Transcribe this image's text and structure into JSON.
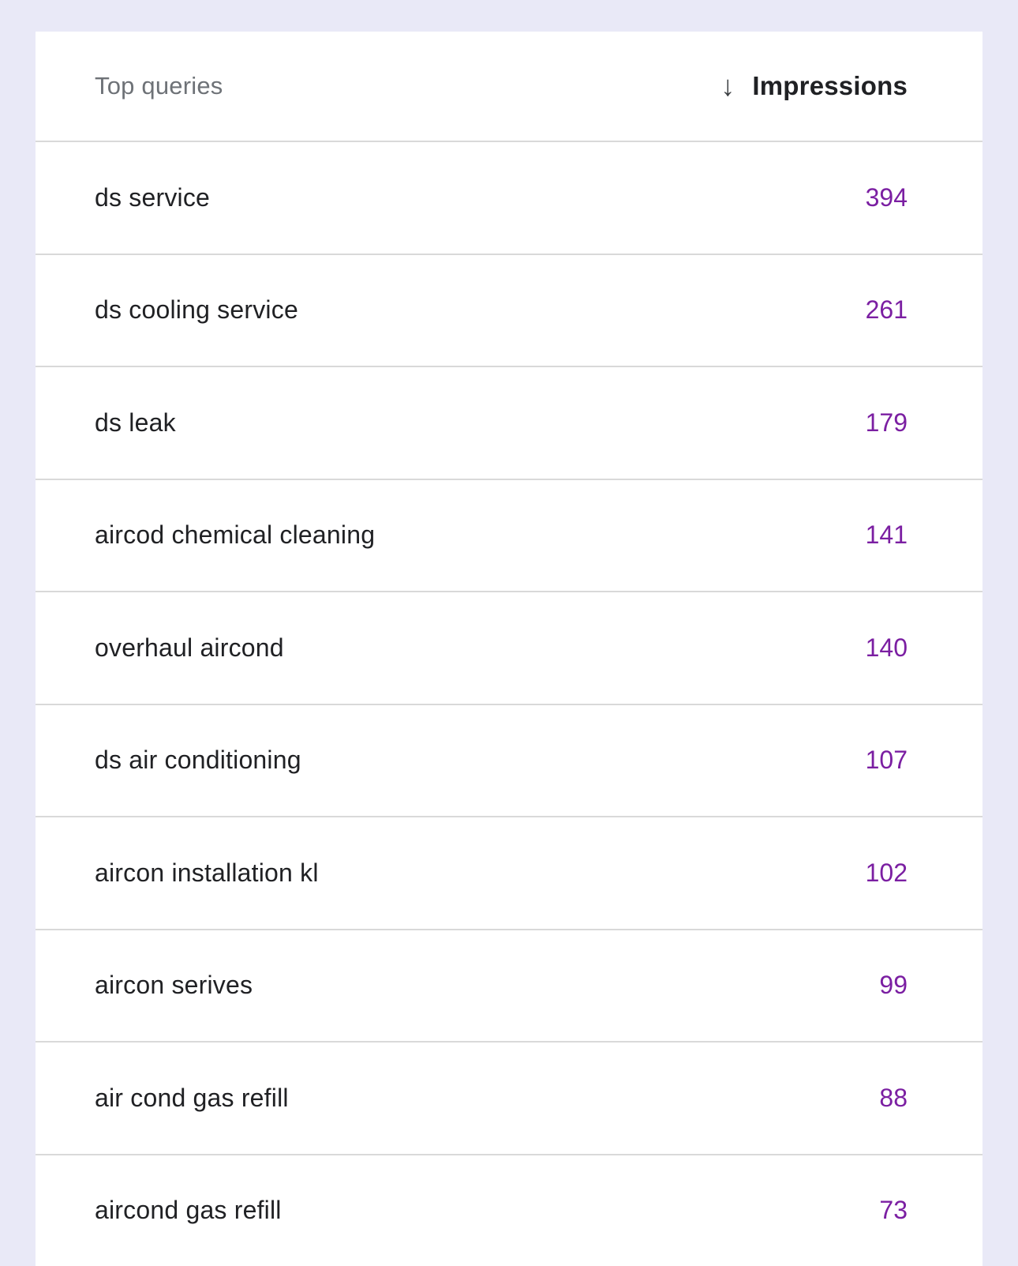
{
  "table": {
    "header": {
      "queries_label": "Top queries",
      "impressions_label": "Impressions",
      "sort_icon": "arrow-down-icon",
      "sort_direction": "descending"
    },
    "rows": [
      {
        "query": "ds service",
        "impressions": "394"
      },
      {
        "query": "ds cooling service",
        "impressions": "261"
      },
      {
        "query": "ds leak",
        "impressions": "179"
      },
      {
        "query": "aircod chemical cleaning",
        "impressions": "141"
      },
      {
        "query": "overhaul aircond",
        "impressions": "140"
      },
      {
        "query": "ds air conditioning",
        "impressions": "107"
      },
      {
        "query": "aircon installation kl",
        "impressions": "102"
      },
      {
        "query": "aircon serives",
        "impressions": "99"
      },
      {
        "query": "air cond gas refill",
        "impressions": "88"
      },
      {
        "query": "aircond gas refill",
        "impressions": "73"
      }
    ],
    "colors": {
      "page_background": "#e9e9f7",
      "card_background": "#ffffff",
      "impressions_value": "#7b1fa2",
      "query_text": "#202124",
      "header_gray": "#6e7277",
      "divider": "#d9d9d9"
    },
    "icons": {
      "sort_arrow_glyph": "↓"
    }
  }
}
